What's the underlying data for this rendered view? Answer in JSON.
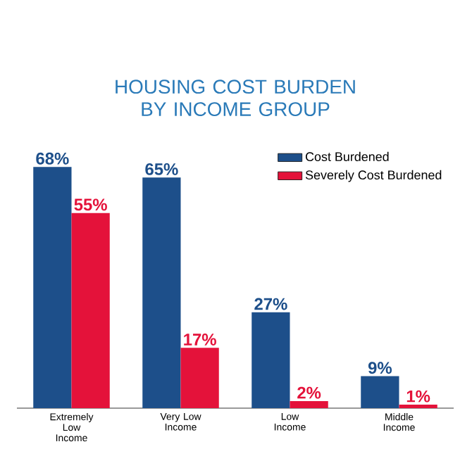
{
  "chart_data": {
    "type": "bar",
    "title": "HOUSING COST BURDEN BY INCOME GROUP",
    "categories": [
      "Extremely Low Income",
      "Very Low Income",
      "Low Income",
      "Middle Income"
    ],
    "series": [
      {
        "name": "Cost Burdened",
        "color": "#1d4f8a",
        "values": [
          68,
          65,
          27,
          9
        ],
        "value_labels": [
          "68%",
          "65%",
          "27%",
          "9%"
        ]
      },
      {
        "name": "Severely Cost Burdened",
        "color": "#e4123a",
        "values": [
          55,
          17,
          2,
          1
        ],
        "value_labels": [
          "55%",
          "17%",
          "2%",
          "1%"
        ]
      }
    ],
    "legend": "top right"
  }
}
